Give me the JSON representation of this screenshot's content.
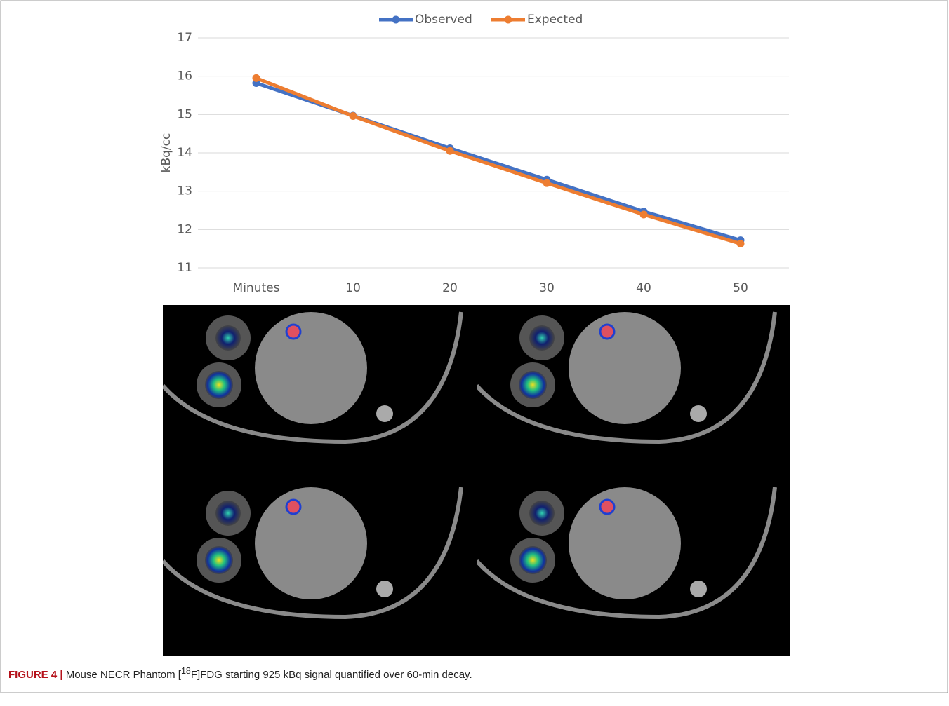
{
  "chart_data": {
    "type": "line",
    "categories": [
      "Minutes",
      "10",
      "20",
      "30",
      "40",
      "50"
    ],
    "series": [
      {
        "name": "Observed",
        "color": "#4472c4",
        "values": [
          15.82,
          14.97,
          14.12,
          13.3,
          12.47,
          11.72
        ]
      },
      {
        "name": "Expected",
        "color": "#ed7d31",
        "values": [
          15.95,
          14.96,
          14.05,
          13.21,
          12.39,
          11.63
        ]
      }
    ],
    "ylabel": "kBq/cc",
    "ylim": [
      11,
      17
    ],
    "yticks": [
      11,
      12,
      13,
      14,
      15,
      16,
      17
    ],
    "grid": true,
    "legend": "top"
  },
  "caption": {
    "label": "FIGURE 4 |",
    "text_before": "Mouse NECR Phantom [",
    "superscript": "18",
    "text_after": "F]FDG starting 925 kBq signal quantified over 60-min decay."
  }
}
